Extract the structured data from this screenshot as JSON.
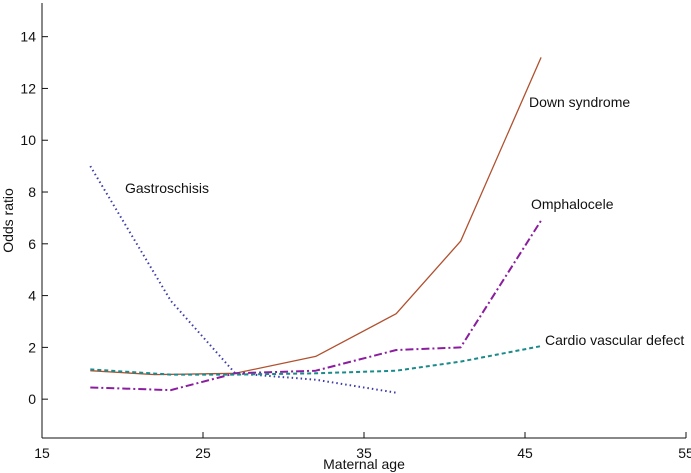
{
  "chart_data": {
    "type": "line",
    "title": "",
    "xlabel": "Maternal age",
    "ylabel": "Odds ratio",
    "xlim": [
      15,
      55
    ],
    "ylim": [
      -1.5,
      15.3
    ],
    "xticks": [
      15,
      25,
      35,
      45,
      55
    ],
    "yticks": [
      0,
      2,
      4,
      6,
      8,
      10,
      12,
      14
    ],
    "grid": false,
    "legend": "none (inline labels)",
    "series": [
      {
        "name": "Down syndrome",
        "label": "Down syndrome",
        "color": "#b0502e",
        "style": "solid",
        "x": [
          18,
          22,
          27,
          32,
          37,
          41,
          46
        ],
        "y": [
          1.1,
          0.95,
          1.0,
          1.65,
          3.3,
          6.1,
          13.2
        ]
      },
      {
        "name": "Gastroschisis",
        "label": "Gastroschisis",
        "color": "#3c3ca8",
        "style": "dotted",
        "x": [
          18,
          23,
          27,
          32,
          37
        ],
        "y": [
          9.0,
          3.8,
          1.0,
          0.75,
          0.25
        ]
      },
      {
        "name": "Omphalocele",
        "label": "Omphalocele",
        "color": "#8a1e9e",
        "style": "dashdot",
        "x": [
          18,
          23,
          27,
          32,
          37,
          41,
          46
        ],
        "y": [
          0.45,
          0.35,
          1.0,
          1.1,
          1.9,
          2.0,
          6.9
        ]
      },
      {
        "name": "Cardio vascular defect",
        "label": "Cardio vascular defect",
        "color": "#1a8a8a",
        "style": "dashed",
        "x": [
          18,
          23,
          27,
          32,
          37,
          41,
          46
        ],
        "y": [
          1.15,
          0.95,
          0.95,
          1.0,
          1.1,
          1.45,
          2.05
        ]
      }
    ]
  }
}
